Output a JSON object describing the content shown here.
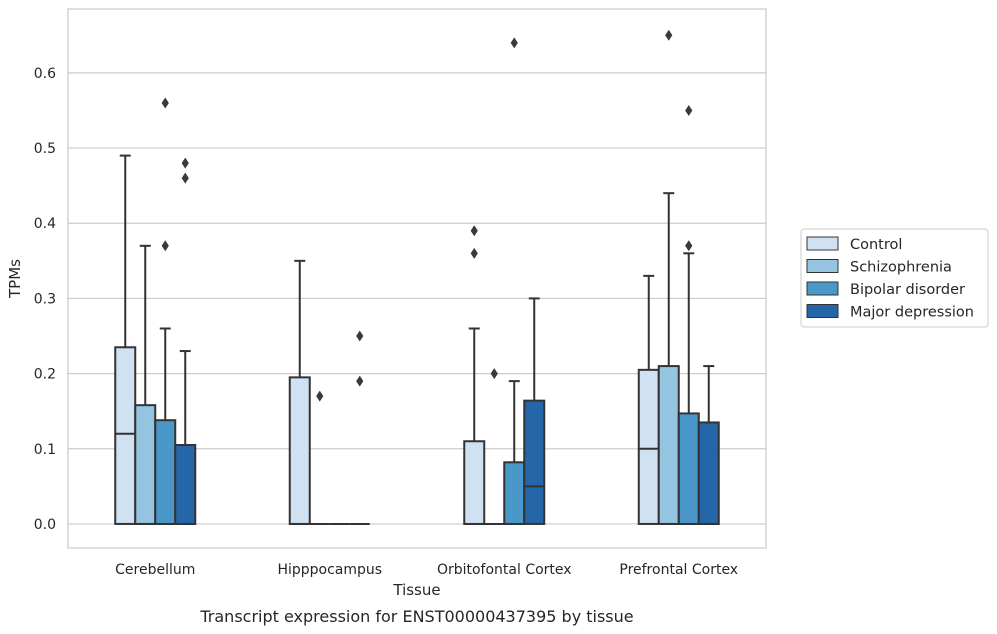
{
  "chart_data": {
    "type": "box",
    "caption": "Transcript expression for ENST00000437395 by tissue",
    "xlabel": "Tissue",
    "ylabel": "TPMs",
    "ylim": [
      -0.032,
      0.685
    ],
    "yticks": [
      {
        "value": 0.0,
        "label": "0.0"
      },
      {
        "value": 0.1,
        "label": "0.1"
      },
      {
        "value": 0.2,
        "label": "0.2"
      },
      {
        "value": 0.3,
        "label": "0.3"
      },
      {
        "value": 0.4,
        "label": "0.4"
      },
      {
        "value": 0.5,
        "label": "0.5"
      },
      {
        "value": 0.6,
        "label": "0.6"
      }
    ],
    "grid": "horizontal",
    "legend": "right",
    "categories": [
      "Cerebellum",
      "Hipppocampus",
      "Orbitofontal Cortex",
      "Prefrontal Cortex"
    ],
    "series": [
      {
        "name": "Control",
        "color": "#d0e1f2",
        "boxes": [
          {
            "q1": 0.0,
            "median": 0.12,
            "q3": 0.235,
            "whisker_low": 0.0,
            "whisker_high": 0.49,
            "outliers": []
          },
          {
            "q1": 0.0,
            "median": 0.0,
            "q3": 0.195,
            "whisker_low": 0.0,
            "whisker_high": 0.35,
            "outliers": []
          },
          {
            "q1": 0.0,
            "median": 0.0,
            "q3": 0.11,
            "whisker_low": 0.0,
            "whisker_high": 0.26,
            "outliers": [
              0.36,
              0.39
            ]
          },
          {
            "q1": 0.0,
            "median": 0.1,
            "q3": 0.205,
            "whisker_low": 0.0,
            "whisker_high": 0.33,
            "outliers": []
          }
        ]
      },
      {
        "name": "Schizophrenia",
        "color": "#94c4df",
        "boxes": [
          {
            "q1": 0.0,
            "median": 0.0,
            "q3": 0.158,
            "whisker_low": 0.0,
            "whisker_high": 0.37,
            "outliers": []
          },
          {
            "q1": 0.0,
            "median": 0.0,
            "q3": 0.0,
            "whisker_low": 0.0,
            "whisker_high": 0.0,
            "outliers": [
              0.17
            ]
          },
          {
            "q1": 0.0,
            "median": 0.0,
            "q3": 0.0,
            "whisker_low": 0.0,
            "whisker_high": 0.0,
            "outliers": [
              0.2
            ]
          },
          {
            "q1": 0.0,
            "median": 0.0,
            "q3": 0.21,
            "whisker_low": 0.0,
            "whisker_high": 0.44,
            "outliers": [
              0.65
            ]
          }
        ]
      },
      {
        "name": "Bipolar disorder",
        "color": "#4a98c9",
        "boxes": [
          {
            "q1": 0.0,
            "median": 0.0,
            "q3": 0.138,
            "whisker_low": 0.0,
            "whisker_high": 0.26,
            "outliers": [
              0.37,
              0.56
            ]
          },
          {
            "q1": 0.0,
            "median": 0.0,
            "q3": 0.0,
            "whisker_low": 0.0,
            "whisker_high": 0.0,
            "outliers": []
          },
          {
            "q1": 0.0,
            "median": 0.0,
            "q3": 0.082,
            "whisker_low": 0.0,
            "whisker_high": 0.19,
            "outliers": [
              0.64
            ]
          },
          {
            "q1": 0.0,
            "median": 0.0,
            "q3": 0.147,
            "whisker_low": 0.0,
            "whisker_high": 0.36,
            "outliers": [
              0.37,
              0.55
            ]
          }
        ]
      },
      {
        "name": "Major depression",
        "color": "#2566a8",
        "boxes": [
          {
            "q1": 0.0,
            "median": 0.0,
            "q3": 0.105,
            "whisker_low": 0.0,
            "whisker_high": 0.23,
            "outliers": [
              0.46,
              0.48
            ]
          },
          {
            "q1": 0.0,
            "median": 0.0,
            "q3": 0.0,
            "whisker_low": 0.0,
            "whisker_high": 0.0,
            "outliers": [
              0.19,
              0.25
            ]
          },
          {
            "q1": 0.0,
            "median": 0.05,
            "q3": 0.164,
            "whisker_low": 0.0,
            "whisker_high": 0.3,
            "outliers": []
          },
          {
            "q1": 0.0,
            "median": 0.0,
            "q3": 0.135,
            "whisker_low": 0.0,
            "whisker_high": 0.21,
            "outliers": []
          }
        ]
      }
    ]
  }
}
